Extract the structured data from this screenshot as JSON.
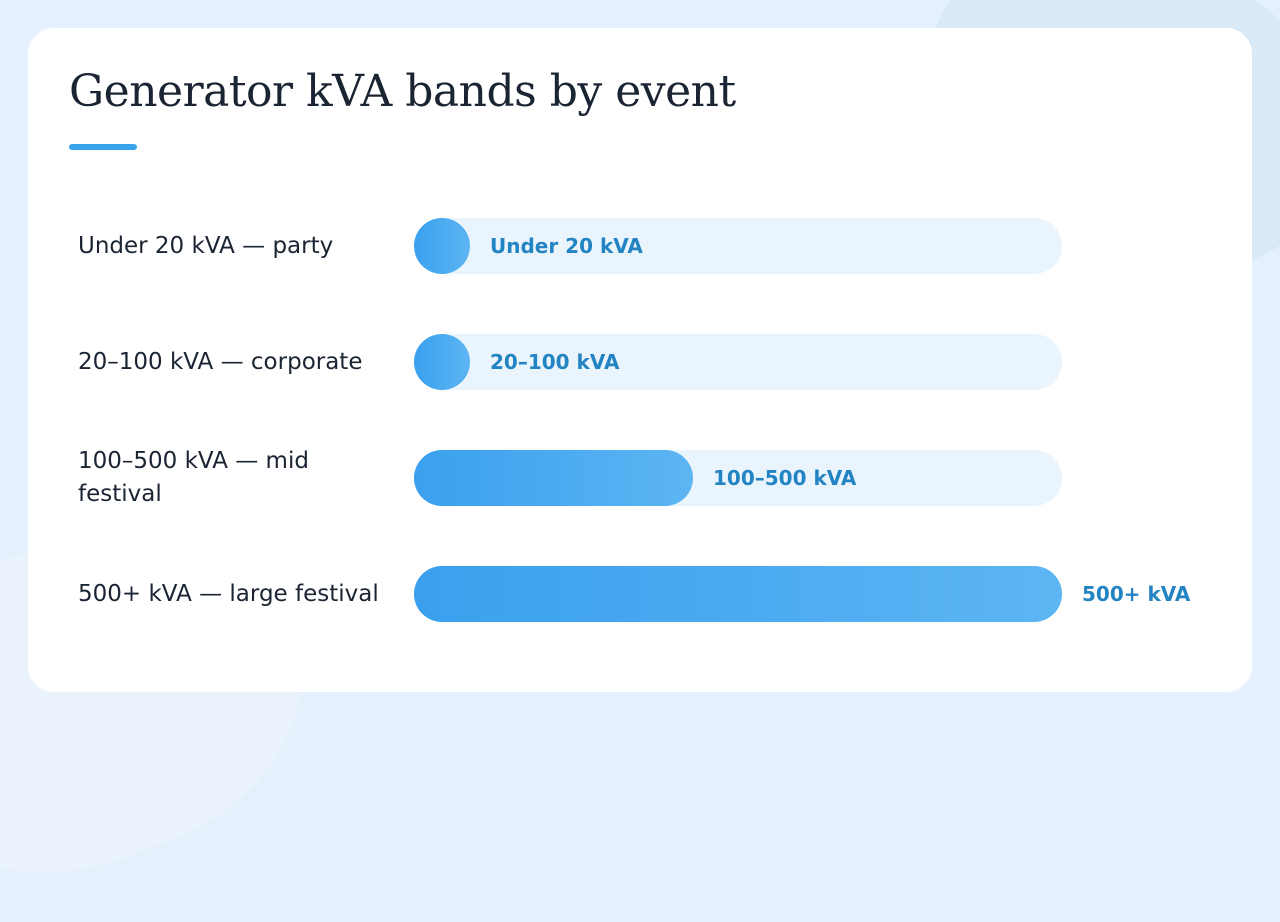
{
  "chart_data": {
    "type": "bar",
    "title": "Generator kVA bands by event",
    "xlabel": "",
    "ylabel": "",
    "categories": [
      "Under 20 kVA — party",
      "20–100 kVA — corporate",
      "100–500 kVA — mid festival",
      "500+ kVA — large festival"
    ],
    "value_labels": [
      "Under 20 kVA",
      "20–100 kVA",
      "100–500 kVA",
      "500+ kVA"
    ],
    "values": [
      0.085,
      0.085,
      0.43,
      1.0
    ],
    "xlim": [
      0,
      1
    ],
    "grid": false,
    "legend": "none",
    "colors": {
      "bar_start": "#3aa0ee",
      "bar_end": "#5db5f3",
      "track": "#eaf4fd",
      "value_text": "#2384c4",
      "label_text": "#1a2433",
      "accent": "#3aa3ee"
    }
  }
}
